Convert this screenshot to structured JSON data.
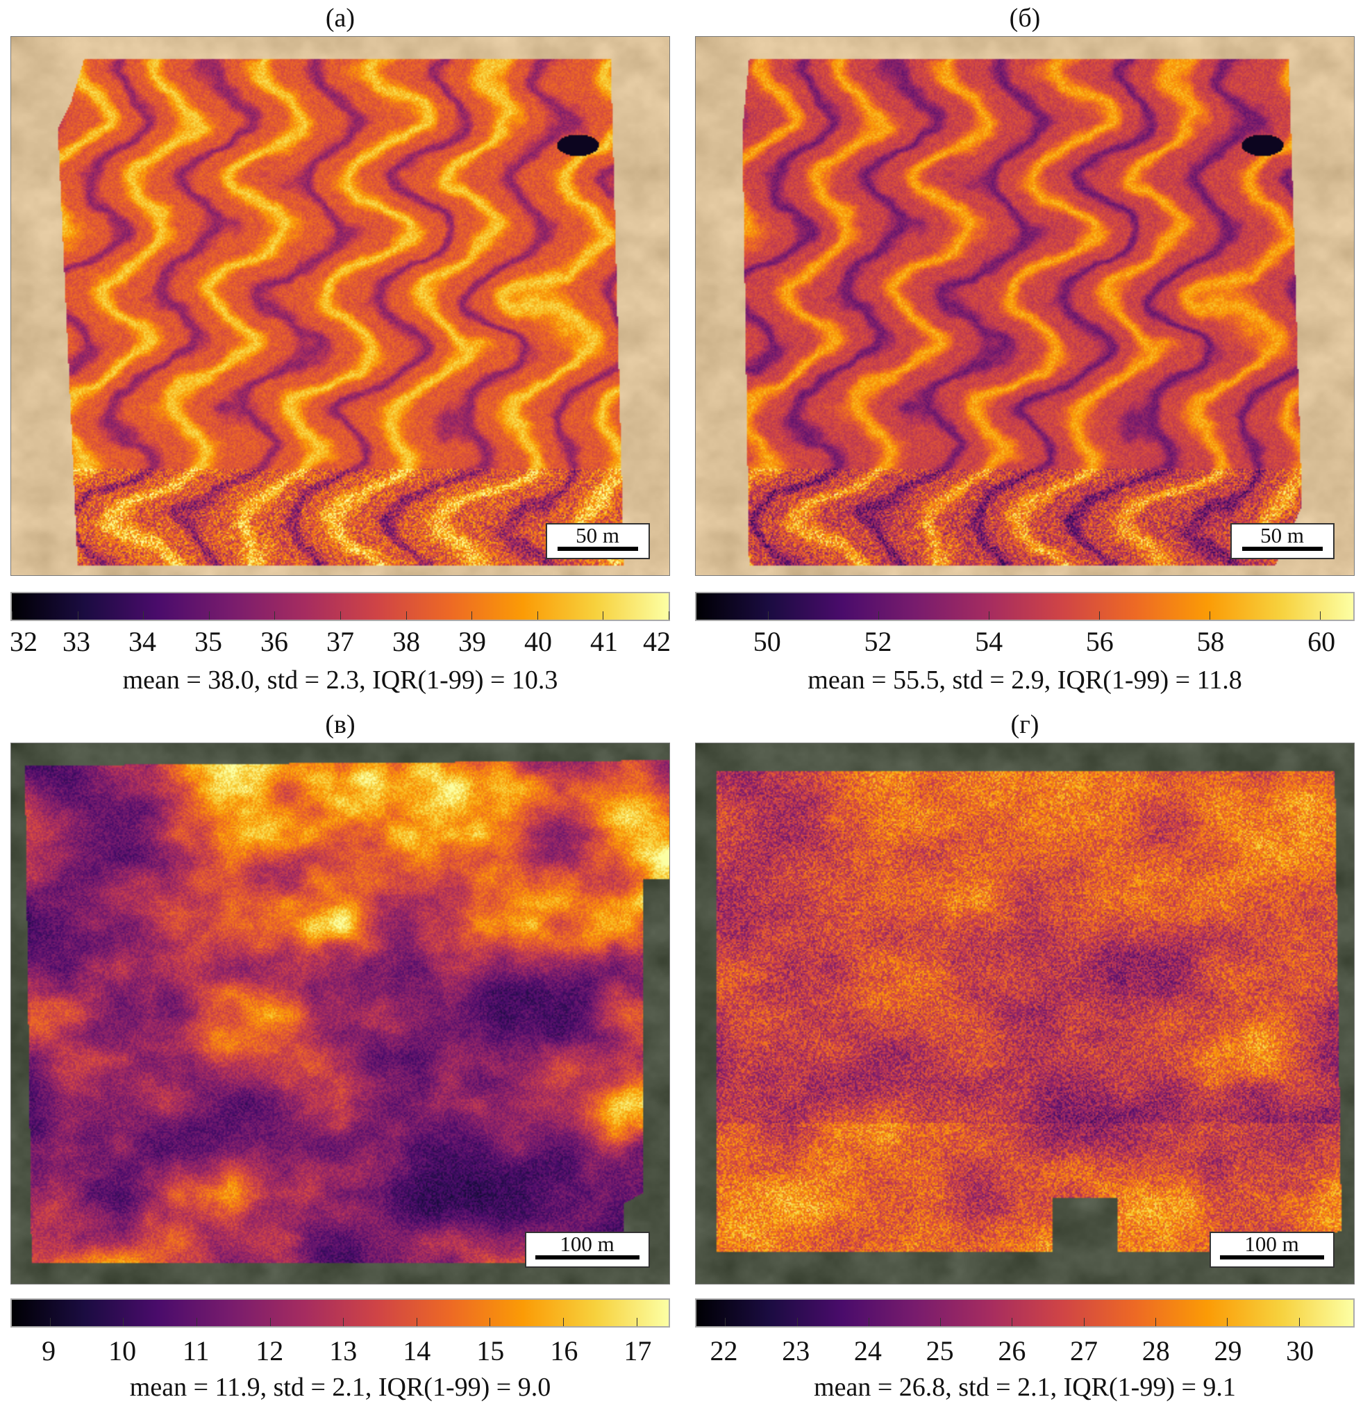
{
  "figure": {
    "panels": [
      {
        "label": "(а)",
        "scale_bar": "50 m",
        "background": "sand",
        "pattern": "dunes",
        "colorbar": {
          "min": 32,
          "max": 42,
          "ticks": [
            "32",
            "33",
            "34",
            "35",
            "36",
            "37",
            "38",
            "39",
            "40",
            "41",
            "42"
          ]
        },
        "stats": "mean = 38.0, std = 2.3, IQR(1-99) = 10.3"
      },
      {
        "label": "(б)",
        "scale_bar": "50 m",
        "background": "sand",
        "pattern": "dunes",
        "colorbar": {
          "min": 48.7,
          "max": 60.6,
          "ticks": [
            "50",
            "52",
            "54",
            "56",
            "58",
            "60"
          ]
        },
        "stats": "mean = 55.5, std = 2.9, IQR(1-99) = 11.8"
      },
      {
        "label": "(в)",
        "scale_bar": "100 m",
        "background": "vegetation",
        "pattern": "blobs-dark",
        "colorbar": {
          "min": 8.48,
          "max": 17.44,
          "ticks": [
            "9",
            "10",
            "11",
            "12",
            "13",
            "14",
            "15",
            "16",
            "17"
          ]
        },
        "stats": "mean = 11.9, std = 2.1, IQR(1-99) = 9.0"
      },
      {
        "label": "(г)",
        "scale_bar": "100 m",
        "background": "vegetation",
        "pattern": "blobs-bright",
        "colorbar": {
          "min": 21.6,
          "max": 30.76,
          "ticks": [
            "22",
            "23",
            "24",
            "25",
            "26",
            "27",
            "28",
            "29",
            "30"
          ]
        },
        "stats": "mean = 26.8, std = 2.1, IQR(1-99) = 9.1"
      }
    ],
    "colormap": "inferno",
    "colors": {
      "sand": "#dcc29a",
      "vegetation": "#4c5444"
    }
  }
}
